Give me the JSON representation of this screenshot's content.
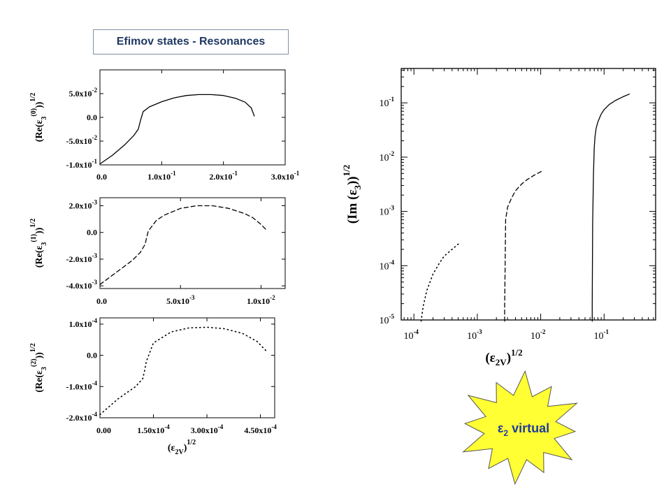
{
  "title": "Efimov states - Resonances",
  "colors": {
    "title_text": "#1f3864",
    "title_border": "#7f8fa6",
    "burst_fill": "#ffff33",
    "burst_text": "#1f3c9e",
    "line": "#000000"
  },
  "callout": {
    "text": "ε",
    "sub": "2",
    "rest": " virtual",
    "shape": "starburst"
  },
  "chart_data": [
    {
      "type": "line",
      "xlabel": "",
      "ylabel": "(Re(ε₃⁽⁰⁾))^1/2",
      "ylabel_parts": {
        "open": "(Re(ε",
        "sub": "3",
        "sup": "(0)",
        "close": "))",
        "outer_sup": "1/2"
      },
      "xlim": [
        0,
        0.3
      ],
      "ylim": [
        -0.1,
        0.1
      ],
      "xticks": [
        {
          "v": 0,
          "label": "0.0"
        },
        {
          "v": 0.1,
          "label": "1.0x10-1"
        },
        {
          "v": 0.2,
          "label": "2.0x10-1"
        },
        {
          "v": 0.3,
          "label": "3.0x10-1"
        }
      ],
      "yticks": [
        {
          "v": -0.1,
          "label": "-1.0x10-1"
        },
        {
          "v": -0.05,
          "label": "-5.0x10-2"
        },
        {
          "v": 0,
          "label": "0.0"
        },
        {
          "v": 0.05,
          "label": "5.0x10-2"
        }
      ],
      "series": [
        {
          "style": "solid",
          "x": [
            0,
            0.02,
            0.04,
            0.055,
            0.062,
            0.066,
            0.07,
            0.08,
            0.1,
            0.12,
            0.14,
            0.16,
            0.18,
            0.2,
            0.22,
            0.235,
            0.245,
            0.25
          ],
          "y": [
            -0.098,
            -0.08,
            -0.058,
            -0.038,
            -0.025,
            -0.005,
            0.012,
            0.022,
            0.033,
            0.041,
            0.046,
            0.048,
            0.048,
            0.046,
            0.04,
            0.032,
            0.02,
            0.003
          ]
        }
      ]
    },
    {
      "type": "line",
      "xlabel": "",
      "ylabel": "(Re(ε₃⁽¹⁾))^1/2",
      "ylabel_parts": {
        "open": "(Re(ε",
        "sub": "3",
        "sup": "(1)",
        "close": "))",
        "outer_sup": "1/2"
      },
      "xlim": [
        0,
        0.0115
      ],
      "ylim": [
        -0.0042,
        0.0026
      ],
      "xticks": [
        {
          "v": 0,
          "label": "0.0"
        },
        {
          "v": 0.005,
          "label": "5.0x10-3"
        },
        {
          "v": 0.01,
          "label": "1.0x10-2"
        }
      ],
      "yticks": [
        {
          "v": -0.004,
          "label": "-4.0x10-3"
        },
        {
          "v": -0.002,
          "label": "-2.0x10-3"
        },
        {
          "v": 0,
          "label": "0.0"
        },
        {
          "v": 0.002,
          "label": "2.0x10-3"
        }
      ],
      "series": [
        {
          "style": "dashed",
          "x": [
            0,
            0.001,
            0.002,
            0.0025,
            0.0028,
            0.003,
            0.0035,
            0.004,
            0.005,
            0.006,
            0.007,
            0.008,
            0.009,
            0.0095,
            0.01,
            0.0104
          ],
          "y": [
            -0.0039,
            -0.003,
            -0.0021,
            -0.0015,
            -0.0009,
            0.0001,
            0.0009,
            0.0013,
            0.0018,
            0.002,
            0.002,
            0.0018,
            0.0014,
            0.0011,
            0.0006,
            0.0001
          ]
        }
      ]
    },
    {
      "type": "line",
      "xlabel": "(ε2V)^1/2",
      "xlabel_parts": {
        "open": "(ε",
        "sub": "2V",
        "close": ")",
        "outer_sup": "1/2"
      },
      "ylabel": "(Re(ε₃⁽²⁾))^1/2",
      "ylabel_parts": {
        "open": "(Re(ε",
        "sub": "3",
        "sup": "(2)",
        "close": "))",
        "outer_sup": "1/2"
      },
      "xlim": [
        0,
        0.00049
      ],
      "ylim": [
        -0.0002,
        0.00012
      ],
      "xticks": [
        {
          "v": 0,
          "label": "0.00"
        },
        {
          "v": 0.00015,
          "label": "1.50x10-4"
        },
        {
          "v": 0.0003,
          "label": "3.00x10-4"
        },
        {
          "v": 0.00045,
          "label": "4.50x10-4"
        }
      ],
      "yticks": [
        {
          "v": -0.0002,
          "label": "-2.0x10-4"
        },
        {
          "v": -0.0001,
          "label": "-1.0x10-4"
        },
        {
          "v": 0,
          "label": "0.0"
        },
        {
          "v": 0.0001,
          "label": "1.0x10-4"
        }
      ],
      "series": [
        {
          "style": "dotted",
          "x": [
            0,
            5e-05,
            0.0001,
            0.00012,
            0.000125,
            0.00013,
            0.00015,
            0.0002,
            0.00025,
            0.0003,
            0.00035,
            0.0004,
            0.00044,
            0.00047
          ],
          "y": [
            -0.00019,
            -0.00014,
            -0.0001,
            -7.5e-05,
            -5e-05,
            -2e-05,
            4e-05,
            7.5e-05,
            8.8e-05,
            9e-05,
            8.5e-05,
            7e-05,
            4.5e-05,
            1e-05
          ]
        }
      ]
    },
    {
      "type": "line",
      "xscale": "log",
      "yscale": "log",
      "xlabel": "(ε 2V)^1/2",
      "xlabel_parts": {
        "open": "(ε",
        "sub": "2V",
        "close": ")",
        "outer_sup": "1/2"
      },
      "ylabel": "(Im (ε3))^1/2",
      "ylabel_parts": {
        "open": "(Im (ε",
        "sub": "3",
        "close": "))",
        "outer_sup": "1/2"
      },
      "xlim": [
        6.3e-05,
        0.65
      ],
      "ylim": [
        1e-05,
        0.43
      ],
      "xticks": [
        {
          "v": 0.0001,
          "m": "10",
          "e": "-4"
        },
        {
          "v": 0.001,
          "m": "10",
          "e": "-3"
        },
        {
          "v": 0.01,
          "m": "10",
          "e": "-2"
        },
        {
          "v": 0.1,
          "m": "10",
          "e": "-1"
        }
      ],
      "yticks": [
        {
          "v": 1e-05,
          "m": "10",
          "e": "-5"
        },
        {
          "v": 0.0001,
          "m": "10",
          "e": "-4"
        },
        {
          "v": 0.001,
          "m": "10",
          "e": "-3"
        },
        {
          "v": 0.01,
          "m": "10",
          "e": "-2"
        },
        {
          "v": 0.1,
          "m": "10",
          "e": "-1"
        }
      ],
      "series": [
        {
          "style": "dotted",
          "x": [
            0.00013,
            0.00014,
            0.00016,
            0.0002,
            0.00025,
            0.0003,
            0.0004,
            0.0005
          ],
          "y": [
            9.5e-06,
            1.8e-05,
            3.5e-05,
            7e-05,
            0.00011,
            0.00015,
            0.0002,
            0.00025
          ]
        },
        {
          "style": "dashed",
          "x": [
            0.0027,
            0.0027,
            0.00275,
            0.0028,
            0.003,
            0.0035,
            0.004,
            0.005,
            0.006,
            0.008,
            0.011
          ],
          "y": [
            9.5e-06,
            1.8e-05,
            0.0001,
            0.0007,
            0.0012,
            0.0018,
            0.0024,
            0.0032,
            0.0038,
            0.0047,
            0.0057
          ]
        },
        {
          "style": "solid",
          "x": [
            0.065,
            0.065,
            0.066,
            0.068,
            0.07,
            0.072,
            0.075,
            0.08,
            0.09,
            0.1,
            0.12,
            0.15,
            0.2,
            0.25
          ],
          "y": [
            9.5e-06,
            2e-05,
            0.0006,
            0.005,
            0.015,
            0.024,
            0.034,
            0.045,
            0.062,
            0.075,
            0.093,
            0.11,
            0.13,
            0.145
          ]
        }
      ]
    }
  ]
}
